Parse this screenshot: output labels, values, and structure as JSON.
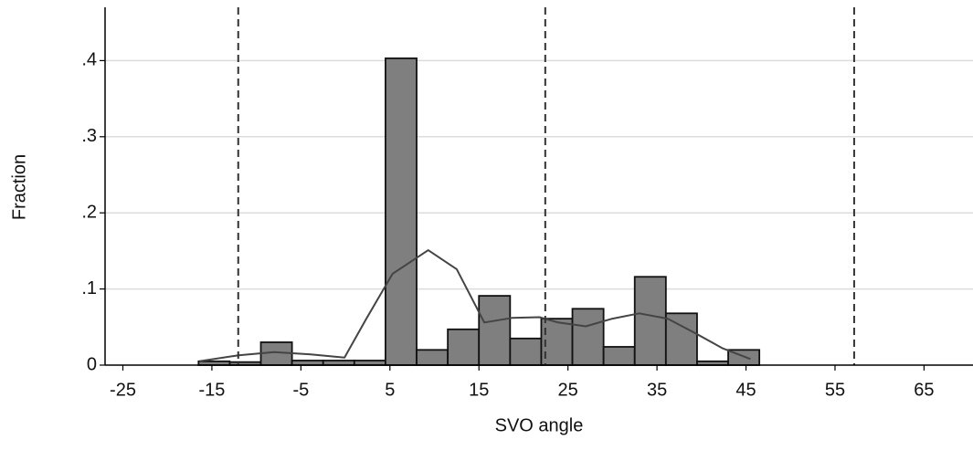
{
  "chart_data": {
    "type": "histogram",
    "xlabel": "SVO angle",
    "ylabel": "Fraction",
    "bins": [
      -16.5,
      -13,
      -9.5,
      -6,
      -2.5,
      1,
      4.5,
      8,
      11.5,
      15,
      18.5,
      22,
      25.5,
      29,
      32.5,
      36,
      39.5,
      43,
      46.5
    ],
    "values": [
      0.005,
      0.004,
      0.03,
      0.006,
      0.006,
      0.006,
      0.403,
      0.02,
      0.047,
      0.091,
      0.035,
      0.061,
      0.074,
      0.024,
      0.116,
      0.068,
      0.005,
      0.02
    ],
    "color": "#7f7f7f",
    "density": {
      "color": "#444444",
      "x": [
        -16.4,
        -12,
        -8,
        -3.9,
        -0.1,
        2.3,
        5.3,
        9.3,
        12.5,
        15.6,
        18.7,
        21.8,
        23.9,
        27,
        30,
        33,
        36.2,
        39.3,
        42.4,
        45.5
      ],
      "values": [
        0.005,
        0.013,
        0.017,
        0.014,
        0.01,
        0.06,
        0.12,
        0.151,
        0.126,
        0.056,
        0.062,
        0.063,
        0.056,
        0.051,
        0.061,
        0.068,
        0.061,
        0.042,
        0.022,
        0.008
      ]
    },
    "reference_lines": [
      -12.04,
      22.45,
      57.15
    ],
    "xlim": [
      -27,
      70.5
    ],
    "ylim": [
      0,
      0.47
    ],
    "xticks": [
      -25,
      -15,
      -5,
      5,
      15,
      25,
      35,
      45,
      55,
      65
    ],
    "yticks": [
      0,
      {
        "value": 0.1,
        "label": ".1"
      },
      {
        "value": 0.2,
        "label": ".2"
      },
      {
        "value": 0.3,
        "label": ".3"
      },
      {
        "value": 0.4,
        "label": ".4"
      }
    ],
    "grid": true
  }
}
